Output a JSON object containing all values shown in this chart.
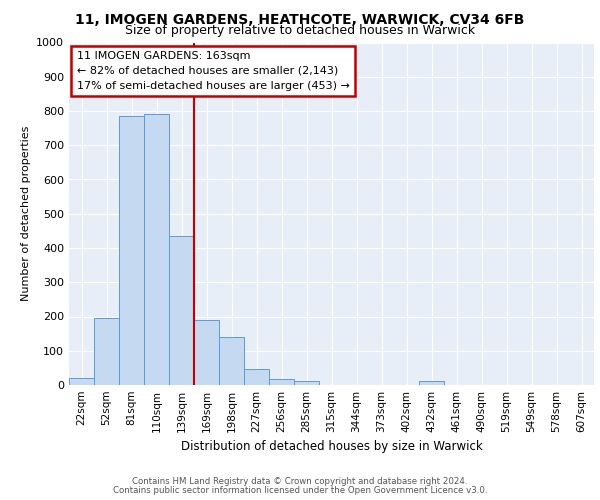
{
  "title1": "11, IMOGEN GARDENS, HEATHCOTE, WARWICK, CV34 6FB",
  "title2": "Size of property relative to detached houses in Warwick",
  "xlabel": "Distribution of detached houses by size in Warwick",
  "ylabel": "Number of detached properties",
  "bar_labels": [
    "22sqm",
    "52sqm",
    "81sqm",
    "110sqm",
    "139sqm",
    "169sqm",
    "198sqm",
    "227sqm",
    "256sqm",
    "285sqm",
    "315sqm",
    "344sqm",
    "373sqm",
    "402sqm",
    "432sqm",
    "461sqm",
    "490sqm",
    "519sqm",
    "549sqm",
    "578sqm",
    "607sqm"
  ],
  "bar_values": [
    20,
    195,
    785,
    790,
    435,
    190,
    140,
    48,
    18,
    12,
    0,
    0,
    0,
    0,
    12,
    0,
    0,
    0,
    0,
    0,
    0
  ],
  "bar_color": "#c5d9f1",
  "bar_edge_color": "#5b9bd5",
  "vline_color": "#c00000",
  "vline_pos": 4.5,
  "annotation_title": "11 IMOGEN GARDENS: 163sqm",
  "annotation_line1": "← 82% of detached houses are smaller (2,143)",
  "annotation_line2": "17% of semi-detached houses are larger (453) →",
  "annotation_box_color": "#c00000",
  "ylim": [
    0,
    1000
  ],
  "yticks": [
    0,
    100,
    200,
    300,
    400,
    500,
    600,
    700,
    800,
    900,
    1000
  ],
  "footer1": "Contains HM Land Registry data © Crown copyright and database right 2024.",
  "footer2": "Contains public sector information licensed under the Open Government Licence v3.0.",
  "bg_color": "#e8eef8",
  "grid_color": "#ffffff",
  "title1_fontsize": 10,
  "title2_fontsize": 9
}
